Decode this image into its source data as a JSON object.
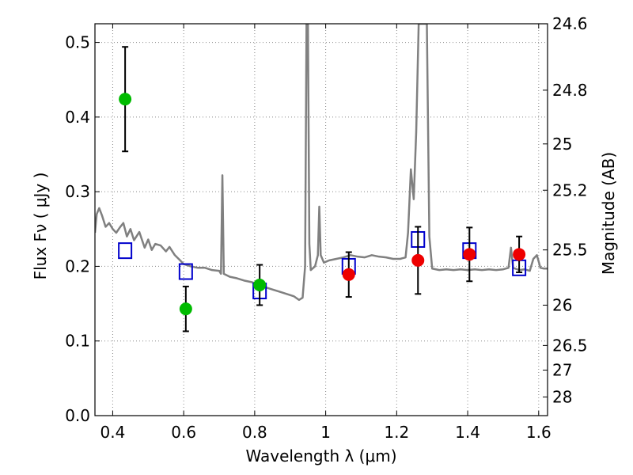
{
  "chart_data": {
    "type": "scatter",
    "xlabel": "Wavelength  λ (μm)",
    "ylabel": "Flux  Fν  ( μJy )",
    "ylabel_right": "Magnitude (AB)",
    "xlim": [
      0.35,
      1.625
    ],
    "ylim": [
      0.0,
      0.525
    ],
    "grid": true,
    "x_ticks": [
      0.4,
      0.6,
      0.8,
      1.0,
      1.2,
      1.4,
      1.6
    ],
    "x_tick_labels": [
      "0.4",
      "0.6",
      "0.8",
      "1",
      "1.2",
      "1.4",
      "1.6"
    ],
    "y_ticks": [
      0.0,
      0.1,
      0.2,
      0.3,
      0.4,
      0.5
    ],
    "y_tick_labels": [
      "0.0",
      "0.1",
      "0.2",
      "0.3",
      "0.4",
      "0.5"
    ],
    "right_ticks": [
      {
        "flux": 0.525,
        "label": "24.6"
      },
      {
        "flux": 0.436,
        "label": "24.8"
      },
      {
        "flux": 0.364,
        "label": "25"
      },
      {
        "flux": 0.302,
        "label": "25.2"
      },
      {
        "flux": 0.222,
        "label": "25.5"
      },
      {
        "flux": 0.148,
        "label": "26"
      },
      {
        "flux": 0.094,
        "label": "26.5"
      },
      {
        "flux": 0.061,
        "label": "27"
      },
      {
        "flux": 0.025,
        "label": "28"
      }
    ],
    "colors": {
      "spectrum": "#808080",
      "green_points": "#00bb00",
      "red_points": "#ee0000",
      "model_squares": "#0000cc",
      "error_bars": "#000000",
      "grid": "#888888"
    },
    "series": [
      {
        "marker": "circle",
        "color": "#00bb00",
        "points": [
          {
            "x": 0.435,
            "y": 0.424,
            "err": 0.07
          },
          {
            "x": 0.606,
            "y": 0.143,
            "err": 0.03
          },
          {
            "x": 0.814,
            "y": 0.175,
            "err": 0.027
          }
        ]
      },
      {
        "marker": "circle",
        "color": "#ee0000",
        "points": [
          {
            "x": 1.065,
            "y": 0.189,
            "err": 0.03
          },
          {
            "x": 1.26,
            "y": 0.208,
            "err": 0.045
          },
          {
            "x": 1.405,
            "y": 0.216,
            "err": 0.036
          },
          {
            "x": 1.545,
            "y": 0.216,
            "err": 0.024
          }
        ]
      },
      {
        "marker": "square",
        "color": "#0000cc",
        "points": [
          {
            "x": 0.435,
            "y": 0.221
          },
          {
            "x": 0.606,
            "y": 0.193
          },
          {
            "x": 0.814,
            "y": 0.167
          },
          {
            "x": 1.065,
            "y": 0.2
          },
          {
            "x": 1.26,
            "y": 0.236
          },
          {
            "x": 1.405,
            "y": 0.221
          },
          {
            "x": 1.545,
            "y": 0.198
          }
        ]
      },
      {
        "marker": "line",
        "color": "#808080",
        "points": [
          [
            0.35,
            0.245
          ],
          [
            0.355,
            0.27
          ],
          [
            0.362,
            0.278
          ],
          [
            0.37,
            0.268
          ],
          [
            0.38,
            0.253
          ],
          [
            0.39,
            0.258
          ],
          [
            0.4,
            0.25
          ],
          [
            0.41,
            0.245
          ],
          [
            0.42,
            0.252
          ],
          [
            0.43,
            0.258
          ],
          [
            0.44,
            0.24
          ],
          [
            0.45,
            0.25
          ],
          [
            0.46,
            0.235
          ],
          [
            0.475,
            0.246
          ],
          [
            0.49,
            0.225
          ],
          [
            0.5,
            0.236
          ],
          [
            0.51,
            0.222
          ],
          [
            0.52,
            0.23
          ],
          [
            0.535,
            0.228
          ],
          [
            0.55,
            0.22
          ],
          [
            0.56,
            0.226
          ],
          [
            0.575,
            0.215
          ],
          [
            0.59,
            0.208
          ],
          [
            0.6,
            0.203
          ],
          [
            0.62,
            0.2
          ],
          [
            0.64,
            0.198
          ],
          [
            0.66,
            0.198
          ],
          [
            0.68,
            0.195
          ],
          [
            0.7,
            0.194
          ],
          [
            0.705,
            0.19
          ],
          [
            0.709,
            0.322
          ],
          [
            0.713,
            0.19
          ],
          [
            0.73,
            0.186
          ],
          [
            0.75,
            0.184
          ],
          [
            0.77,
            0.181
          ],
          [
            0.79,
            0.179
          ],
          [
            0.81,
            0.176
          ],
          [
            0.83,
            0.172
          ],
          [
            0.85,
            0.169
          ],
          [
            0.87,
            0.166
          ],
          [
            0.89,
            0.163
          ],
          [
            0.91,
            0.16
          ],
          [
            0.925,
            0.155
          ],
          [
            0.935,
            0.158
          ],
          [
            0.942,
            0.2
          ],
          [
            0.946,
            0.525
          ],
          [
            0.95,
            0.525
          ],
          [
            0.954,
            0.23
          ],
          [
            0.958,
            0.195
          ],
          [
            0.97,
            0.2
          ],
          [
            0.978,
            0.215
          ],
          [
            0.982,
            0.28
          ],
          [
            0.986,
            0.215
          ],
          [
            0.995,
            0.205
          ],
          [
            1.01,
            0.208
          ],
          [
            1.03,
            0.21
          ],
          [
            1.05,
            0.212
          ],
          [
            1.07,
            0.215
          ],
          [
            1.09,
            0.213
          ],
          [
            1.11,
            0.212
          ],
          [
            1.13,
            0.215
          ],
          [
            1.15,
            0.213
          ],
          [
            1.17,
            0.212
          ],
          [
            1.19,
            0.21
          ],
          [
            1.21,
            0.21
          ],
          [
            1.225,
            0.212
          ],
          [
            1.232,
            0.245
          ],
          [
            1.24,
            0.33
          ],
          [
            1.248,
            0.29
          ],
          [
            1.255,
            0.38
          ],
          [
            1.262,
            0.525
          ],
          [
            1.285,
            0.525
          ],
          [
            1.292,
            0.24
          ],
          [
            1.3,
            0.197
          ],
          [
            1.32,
            0.195
          ],
          [
            1.34,
            0.196
          ],
          [
            1.36,
            0.195
          ],
          [
            1.38,
            0.196
          ],
          [
            1.4,
            0.195
          ],
          [
            1.42,
            0.196
          ],
          [
            1.44,
            0.195
          ],
          [
            1.46,
            0.196
          ],
          [
            1.48,
            0.195
          ],
          [
            1.5,
            0.196
          ],
          [
            1.515,
            0.198
          ],
          [
            1.522,
            0.225
          ],
          [
            1.528,
            0.198
          ],
          [
            1.545,
            0.195
          ],
          [
            1.56,
            0.196
          ],
          [
            1.575,
            0.194
          ],
          [
            1.585,
            0.21
          ],
          [
            1.595,
            0.215
          ],
          [
            1.605,
            0.198
          ],
          [
            1.615,
            0.197
          ],
          [
            1.625,
            0.197
          ]
        ]
      }
    ]
  }
}
